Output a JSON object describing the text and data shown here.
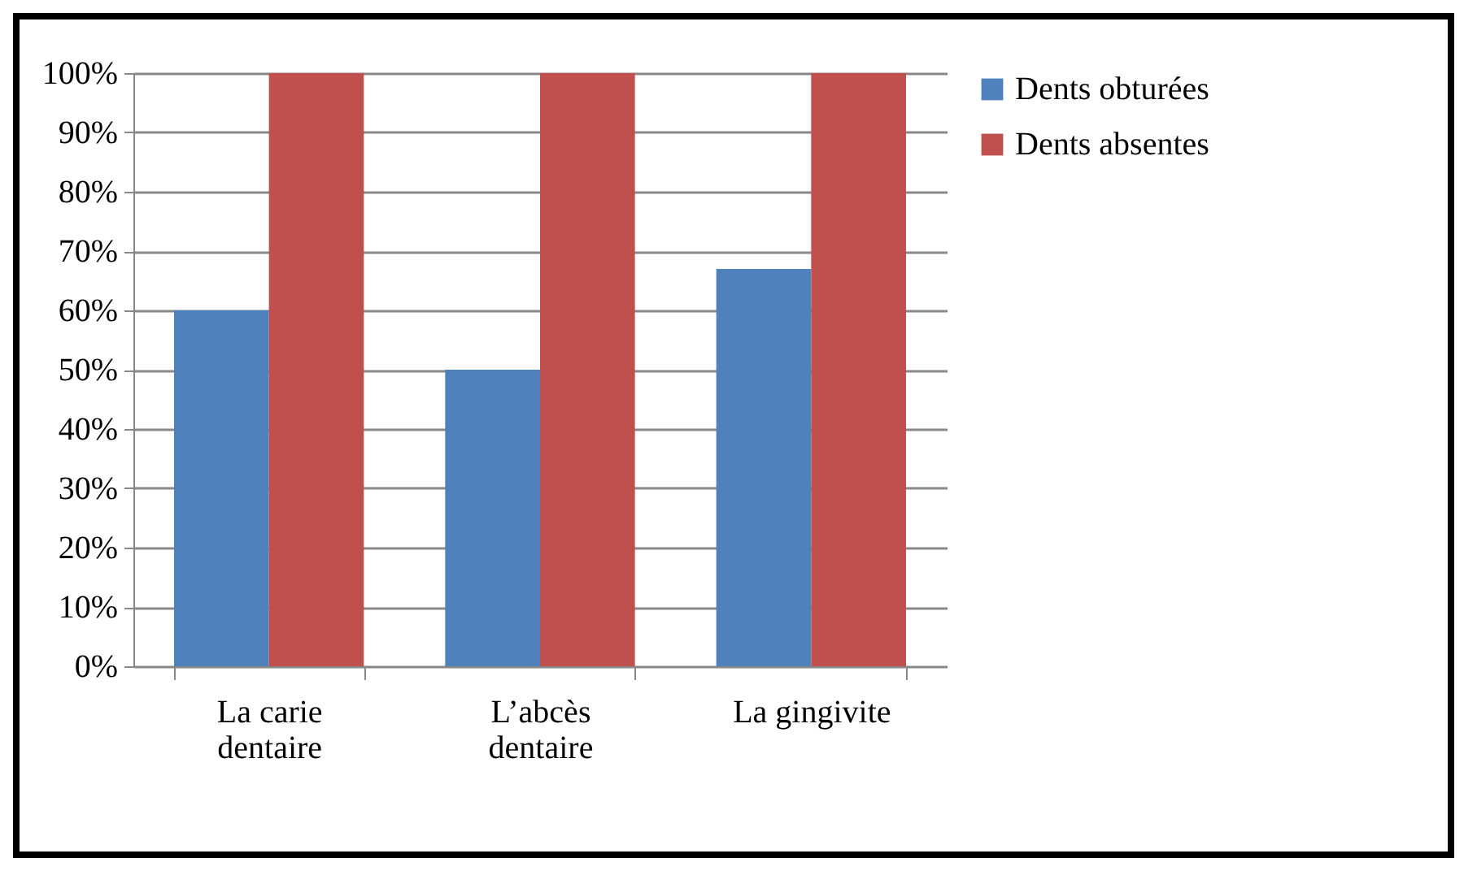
{
  "chart_data": {
    "type": "bar",
    "categories": [
      "La carie dentaire",
      "L’abcès dentaire",
      "La gingivite"
    ],
    "series": [
      {
        "name": "Dents obturées",
        "color": "#4f81bd",
        "values": [
          60,
          50,
          67
        ]
      },
      {
        "name": "Dents absentes",
        "color": "#c0504d",
        "values": [
          100,
          100,
          100
        ]
      }
    ],
    "ylim": [
      0,
      100
    ],
    "yticks": [
      {
        "value": 0,
        "label": "0%"
      },
      {
        "value": 10,
        "label": "10%"
      },
      {
        "value": 20,
        "label": "20%"
      },
      {
        "value": 30,
        "label": "30%"
      },
      {
        "value": 40,
        "label": "40%"
      },
      {
        "value": 50,
        "label": "50%"
      },
      {
        "value": 60,
        "label": "60%"
      },
      {
        "value": 70,
        "label": "70%"
      },
      {
        "value": 80,
        "label": "80%"
      },
      {
        "value": 90,
        "label": "90%"
      },
      {
        "value": 100,
        "label": "100%"
      }
    ],
    "grid": true,
    "legend": "right"
  }
}
